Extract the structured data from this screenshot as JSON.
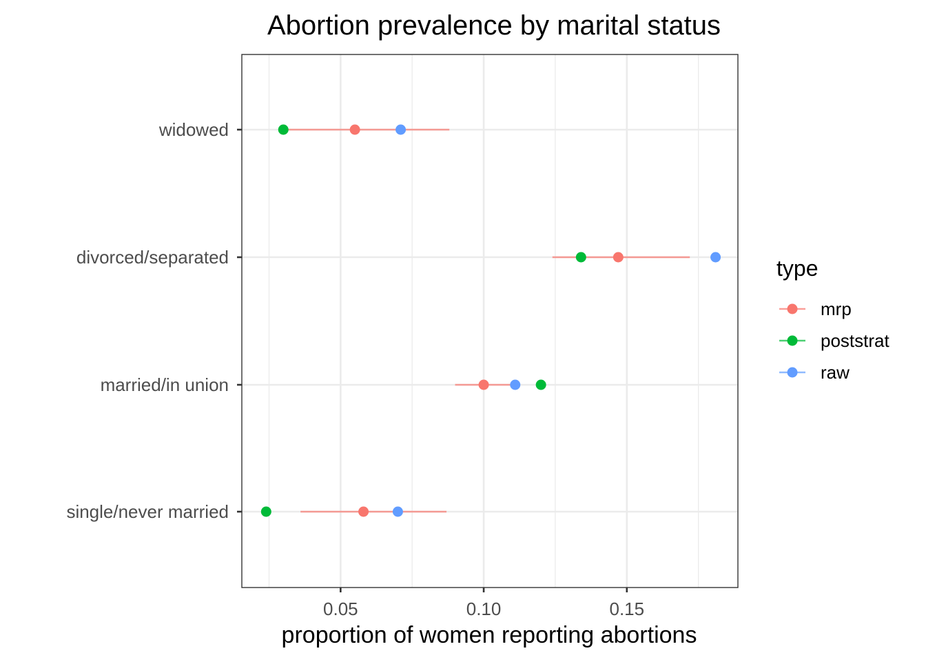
{
  "chart_data": {
    "type": "scatter",
    "title": "Abortion prevalence by marital status",
    "xlabel": "proportion of women reporting abortions",
    "ylabel": "",
    "xlim": [
      0.0155,
      0.1888
    ],
    "xticks": [
      {
        "value": 0.05,
        "label": "0.05"
      },
      {
        "value": 0.1,
        "label": "0.10"
      },
      {
        "value": 0.15,
        "label": "0.15"
      }
    ],
    "categories": [
      "widowed",
      "divorced/separated",
      "married/in union",
      "single/never married"
    ],
    "legend": {
      "title": "type",
      "position": "right"
    },
    "grid": true,
    "series": [
      {
        "name": "mrp",
        "color": "#F8766D",
        "values": [
          0.055,
          0.147,
          0.1,
          0.058
        ],
        "intervals": [
          [
            0.031,
            0.088
          ],
          [
            0.124,
            0.172
          ],
          [
            0.09,
            0.111
          ],
          [
            0.036,
            0.087
          ]
        ]
      },
      {
        "name": "poststrat",
        "color": "#00BA38",
        "values": [
          0.03,
          0.134,
          0.12,
          0.024
        ]
      },
      {
        "name": "raw",
        "color": "#619CFF",
        "values": [
          0.071,
          0.181,
          0.111,
          0.07
        ]
      }
    ]
  }
}
